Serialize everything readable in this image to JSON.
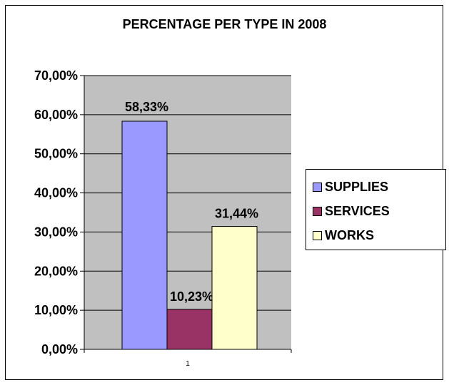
{
  "chart_data": {
    "type": "bar",
    "title": "PERCENTAGE PER TYPE IN 2008",
    "categories": [
      "1"
    ],
    "series": [
      {
        "name": "SUPPLIES",
        "values": [
          58.33
        ],
        "label": "58,33%",
        "color": "#9999ff"
      },
      {
        "name": "SERVICES",
        "values": [
          10.23
        ],
        "label": "10,23%",
        "color": "#993366"
      },
      {
        "name": "WORKS",
        "values": [
          31.44
        ],
        "label": "31,44%",
        "color": "#ffffcc"
      }
    ],
    "ylim": [
      0,
      70
    ],
    "yticks": [
      0,
      10,
      20,
      30,
      40,
      50,
      60,
      70
    ],
    "ytick_labels": [
      "0,00%",
      "10,00%",
      "20,00%",
      "30,00%",
      "40,00%",
      "50,00%",
      "60,00%",
      "70,00%"
    ],
    "xlabel": "",
    "ylabel": "",
    "grid": true,
    "plot_background": "#c0c0c0",
    "legend": "right"
  }
}
